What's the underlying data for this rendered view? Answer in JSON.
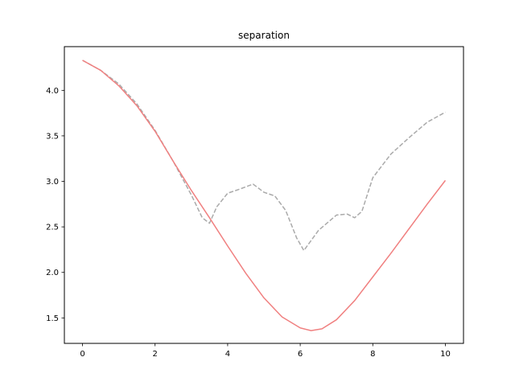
{
  "chart_data": {
    "type": "line",
    "title": "separation",
    "xlabel": "",
    "ylabel": "",
    "xlim": [
      -0.5,
      10.5
    ],
    "ylim": [
      1.22,
      4.48
    ],
    "xticks": [
      0,
      2,
      4,
      6,
      8,
      10
    ],
    "xtick_labels": [
      "0",
      "2",
      "4",
      "6",
      "8",
      "10"
    ],
    "yticks": [
      1.5,
      2.0,
      2.5,
      3.0,
      3.5,
      4.0
    ],
    "ytick_labels": [
      "1.5",
      "2.0",
      "2.5",
      "3.0",
      "3.5",
      "4.0"
    ],
    "grid": false,
    "legend": false,
    "series": [
      {
        "style": "dashed",
        "color": "#aaaaaa",
        "x": [
          0,
          0.5,
          1.0,
          1.5,
          2.0,
          2.5,
          3.0,
          3.3,
          3.5,
          3.7,
          4.0,
          4.3,
          4.7,
          5.0,
          5.3,
          5.6,
          5.9,
          6.1,
          6.5,
          7.0,
          7.3,
          7.5,
          7.7,
          8.0,
          8.5,
          9.0,
          9.5,
          10.0
        ],
        "y": [
          4.33,
          4.22,
          4.07,
          3.85,
          3.56,
          3.22,
          2.85,
          2.6,
          2.54,
          2.72,
          2.87,
          2.91,
          2.97,
          2.88,
          2.84,
          2.68,
          2.38,
          2.24,
          2.46,
          2.63,
          2.64,
          2.6,
          2.67,
          3.04,
          3.3,
          3.48,
          3.65,
          3.76
        ]
      },
      {
        "style": "solid",
        "color": "#f08080",
        "x": [
          0,
          0.5,
          1.0,
          1.5,
          2.0,
          2.5,
          3.0,
          3.5,
          4.0,
          4.5,
          5.0,
          5.5,
          6.0,
          6.3,
          6.6,
          7.0,
          7.5,
          8.0,
          8.5,
          9.0,
          9.5,
          10.0
        ],
        "y": [
          4.33,
          4.22,
          4.05,
          3.83,
          3.55,
          3.22,
          2.9,
          2.6,
          2.29,
          1.99,
          1.72,
          1.51,
          1.39,
          1.36,
          1.38,
          1.48,
          1.69,
          1.95,
          2.21,
          2.48,
          2.75,
          3.01
        ]
      }
    ]
  }
}
